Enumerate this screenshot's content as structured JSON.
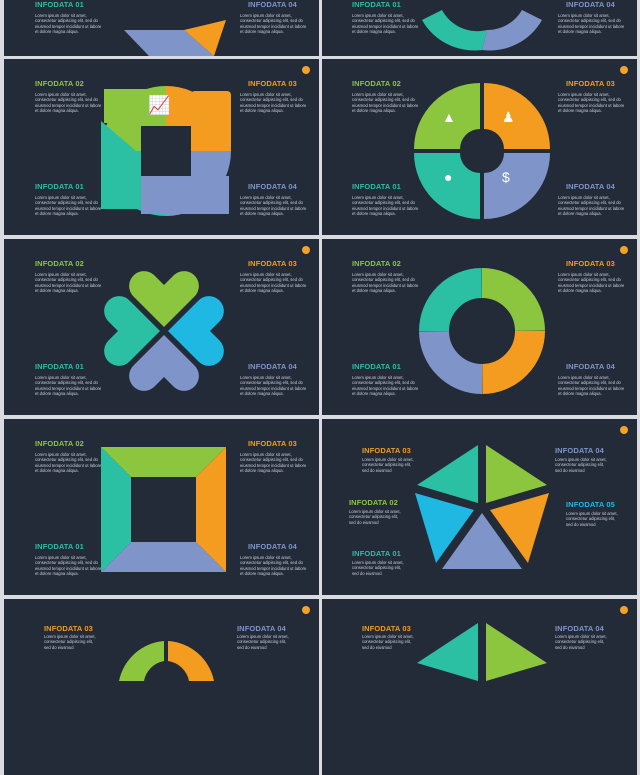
{
  "body_text": "Lorem ipsum dolor sit amet, consectetur adipiscing elit, sed do eiusmod tempor incididunt ut labore et dolore magna aliqua.",
  "short_text": "Lorem ipsum dolor sit amet, consectetur adipiscing elit, sed do eiusmod",
  "labels": {
    "d1": "INFODATA 01",
    "d2": "INFODATA 02",
    "d3": "INFODATA 03",
    "d4": "INFODATA 04",
    "d5": "INFODATA 05"
  },
  "colors": {
    "background": "#232b38",
    "green": "#8cc63f",
    "orange": "#f39c1f",
    "teal": "#2bbfa4",
    "blue": "#7f95c9",
    "cyan": "#1eb8e3",
    "dot": "#f4a227"
  },
  "icons": [
    "growth-chart-icon",
    "team-icon",
    "lightbulb-icon",
    "money-hand-icon",
    "handshake-icon"
  ]
}
